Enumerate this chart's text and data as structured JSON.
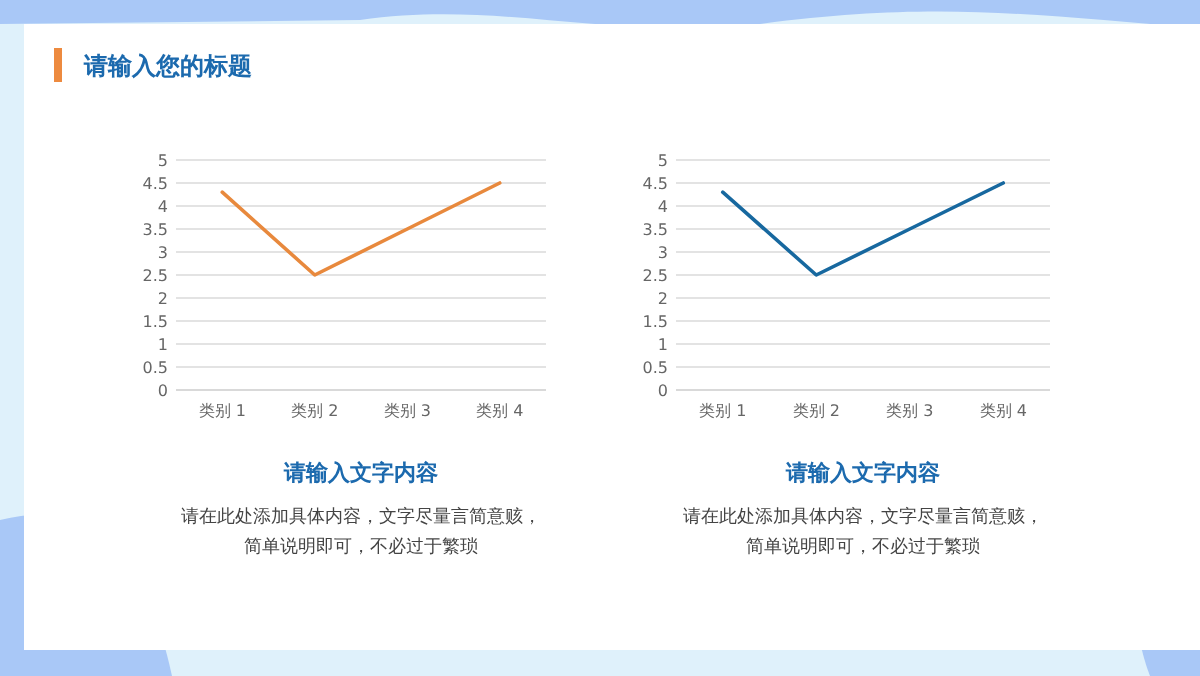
{
  "chart_data": [
    {
      "type": "line",
      "title": "请输入您的标题",
      "subtitle": "请输入文字内容",
      "annotations": [
        "请在此处添加具体内容，文字尽量言简意赅，",
        "简单说明即可，不必过于繁琐"
      ],
      "categories": [
        "类别 1",
        "类别 2",
        "类别 3",
        "类别 4"
      ],
      "series": [
        {
          "color": "#e8893d",
          "values": [
            4.3,
            2.5,
            3.5,
            4.5
          ]
        }
      ],
      "ylim": [
        0,
        5
      ],
      "yticks": [
        0,
        0.5,
        1,
        1.5,
        2,
        2.5,
        3,
        3.5,
        4,
        4.5,
        5
      ],
      "grid": "y"
    },
    {
      "type": "line",
      "subtitle": "请输入文字内容",
      "annotations": [
        "请在此处添加具体内容，文字尽量言简意赅，",
        "简单说明即可，不必过于繁琐"
      ],
      "categories": [
        "类别 1",
        "类别 2",
        "类别 3",
        "类别 4"
      ],
      "series": [
        {
          "color": "#17689f",
          "values": [
            4.3,
            2.5,
            3.5,
            4.5
          ]
        }
      ],
      "ylim": [
        0,
        5
      ],
      "yticks": [
        0,
        0.5,
        1,
        1.5,
        2,
        2.5,
        3,
        3.5,
        4,
        4.5,
        5
      ],
      "grid": "y"
    }
  ]
}
